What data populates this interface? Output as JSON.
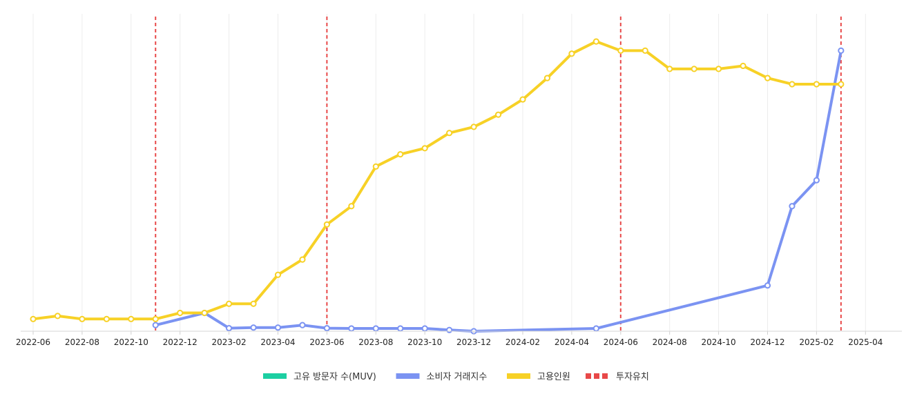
{
  "chart_data": {
    "type": "line",
    "xlabel": "",
    "ylabel": "",
    "x_ticks": [
      "2022-06",
      "2022-08",
      "2022-10",
      "2022-12",
      "2023-02",
      "2023-04",
      "2023-06",
      "2023-08",
      "2023-10",
      "2023-12",
      "2024-02",
      "2024-04",
      "2024-06",
      "2024-08",
      "2024-10",
      "2024-12",
      "2025-02",
      "2025-04"
    ],
    "ylim": [
      0,
      100
    ],
    "y_axis_labels_visible": false,
    "grid": "vertical",
    "legend_position": "bottom-center",
    "series": [
      {
        "name": "고유 방문자 수(MUV)",
        "color": "#1ccfa2",
        "points": []
      },
      {
        "name": "소비자 거래지수",
        "color": "#7b93f2",
        "points": [
          [
            "2022-11",
            2
          ],
          [
            "2023-01",
            6
          ],
          [
            "2023-02",
            1
          ],
          [
            "2023-03",
            1.2
          ],
          [
            "2023-04",
            1.2
          ],
          [
            "2023-05",
            2
          ],
          [
            "2023-06",
            1
          ],
          [
            "2023-07",
            0.9
          ],
          [
            "2023-08",
            0.9
          ],
          [
            "2023-09",
            0.9
          ],
          [
            "2023-10",
            0.9
          ],
          [
            "2023-11",
            0.4
          ],
          [
            "2023-12",
            0
          ],
          [
            "2024-05",
            0.9
          ],
          [
            "2024-12",
            15
          ],
          [
            "2025-01",
            41
          ],
          [
            "2025-02",
            49.5
          ],
          [
            "2025-03",
            92
          ]
        ]
      },
      {
        "name": "고용인원",
        "color": "#f7d126",
        "points": [
          [
            "2022-06",
            4
          ],
          [
            "2022-07",
            5
          ],
          [
            "2022-08",
            4
          ],
          [
            "2022-09",
            4
          ],
          [
            "2022-10",
            4
          ],
          [
            "2022-11",
            4
          ],
          [
            "2022-12",
            6
          ],
          [
            "2023-01",
            6
          ],
          [
            "2023-02",
            9
          ],
          [
            "2023-03",
            9
          ],
          [
            "2023-04",
            18.5
          ],
          [
            "2023-05",
            23.5
          ],
          [
            "2023-06",
            35
          ],
          [
            "2023-07",
            41
          ],
          [
            "2023-08",
            54
          ],
          [
            "2023-09",
            58
          ],
          [
            "2023-10",
            60
          ],
          [
            "2023-11",
            65
          ],
          [
            "2023-12",
            67
          ],
          [
            "2024-01",
            71
          ],
          [
            "2024-02",
            76
          ],
          [
            "2024-03",
            83
          ],
          [
            "2024-04",
            91
          ],
          [
            "2024-05",
            95
          ],
          [
            "2024-06",
            92
          ],
          [
            "2024-07",
            92
          ],
          [
            "2024-08",
            86
          ],
          [
            "2024-09",
            86
          ],
          [
            "2024-10",
            86
          ],
          [
            "2024-11",
            87
          ],
          [
            "2024-12",
            83
          ],
          [
            "2025-01",
            81
          ],
          [
            "2025-02",
            81
          ],
          [
            "2025-03",
            81
          ]
        ]
      }
    ],
    "investment_markers": {
      "name": "투자유치",
      "color": "#e84848",
      "dates": [
        "2022-11",
        "2023-06",
        "2024-06",
        "2025-03"
      ]
    }
  }
}
